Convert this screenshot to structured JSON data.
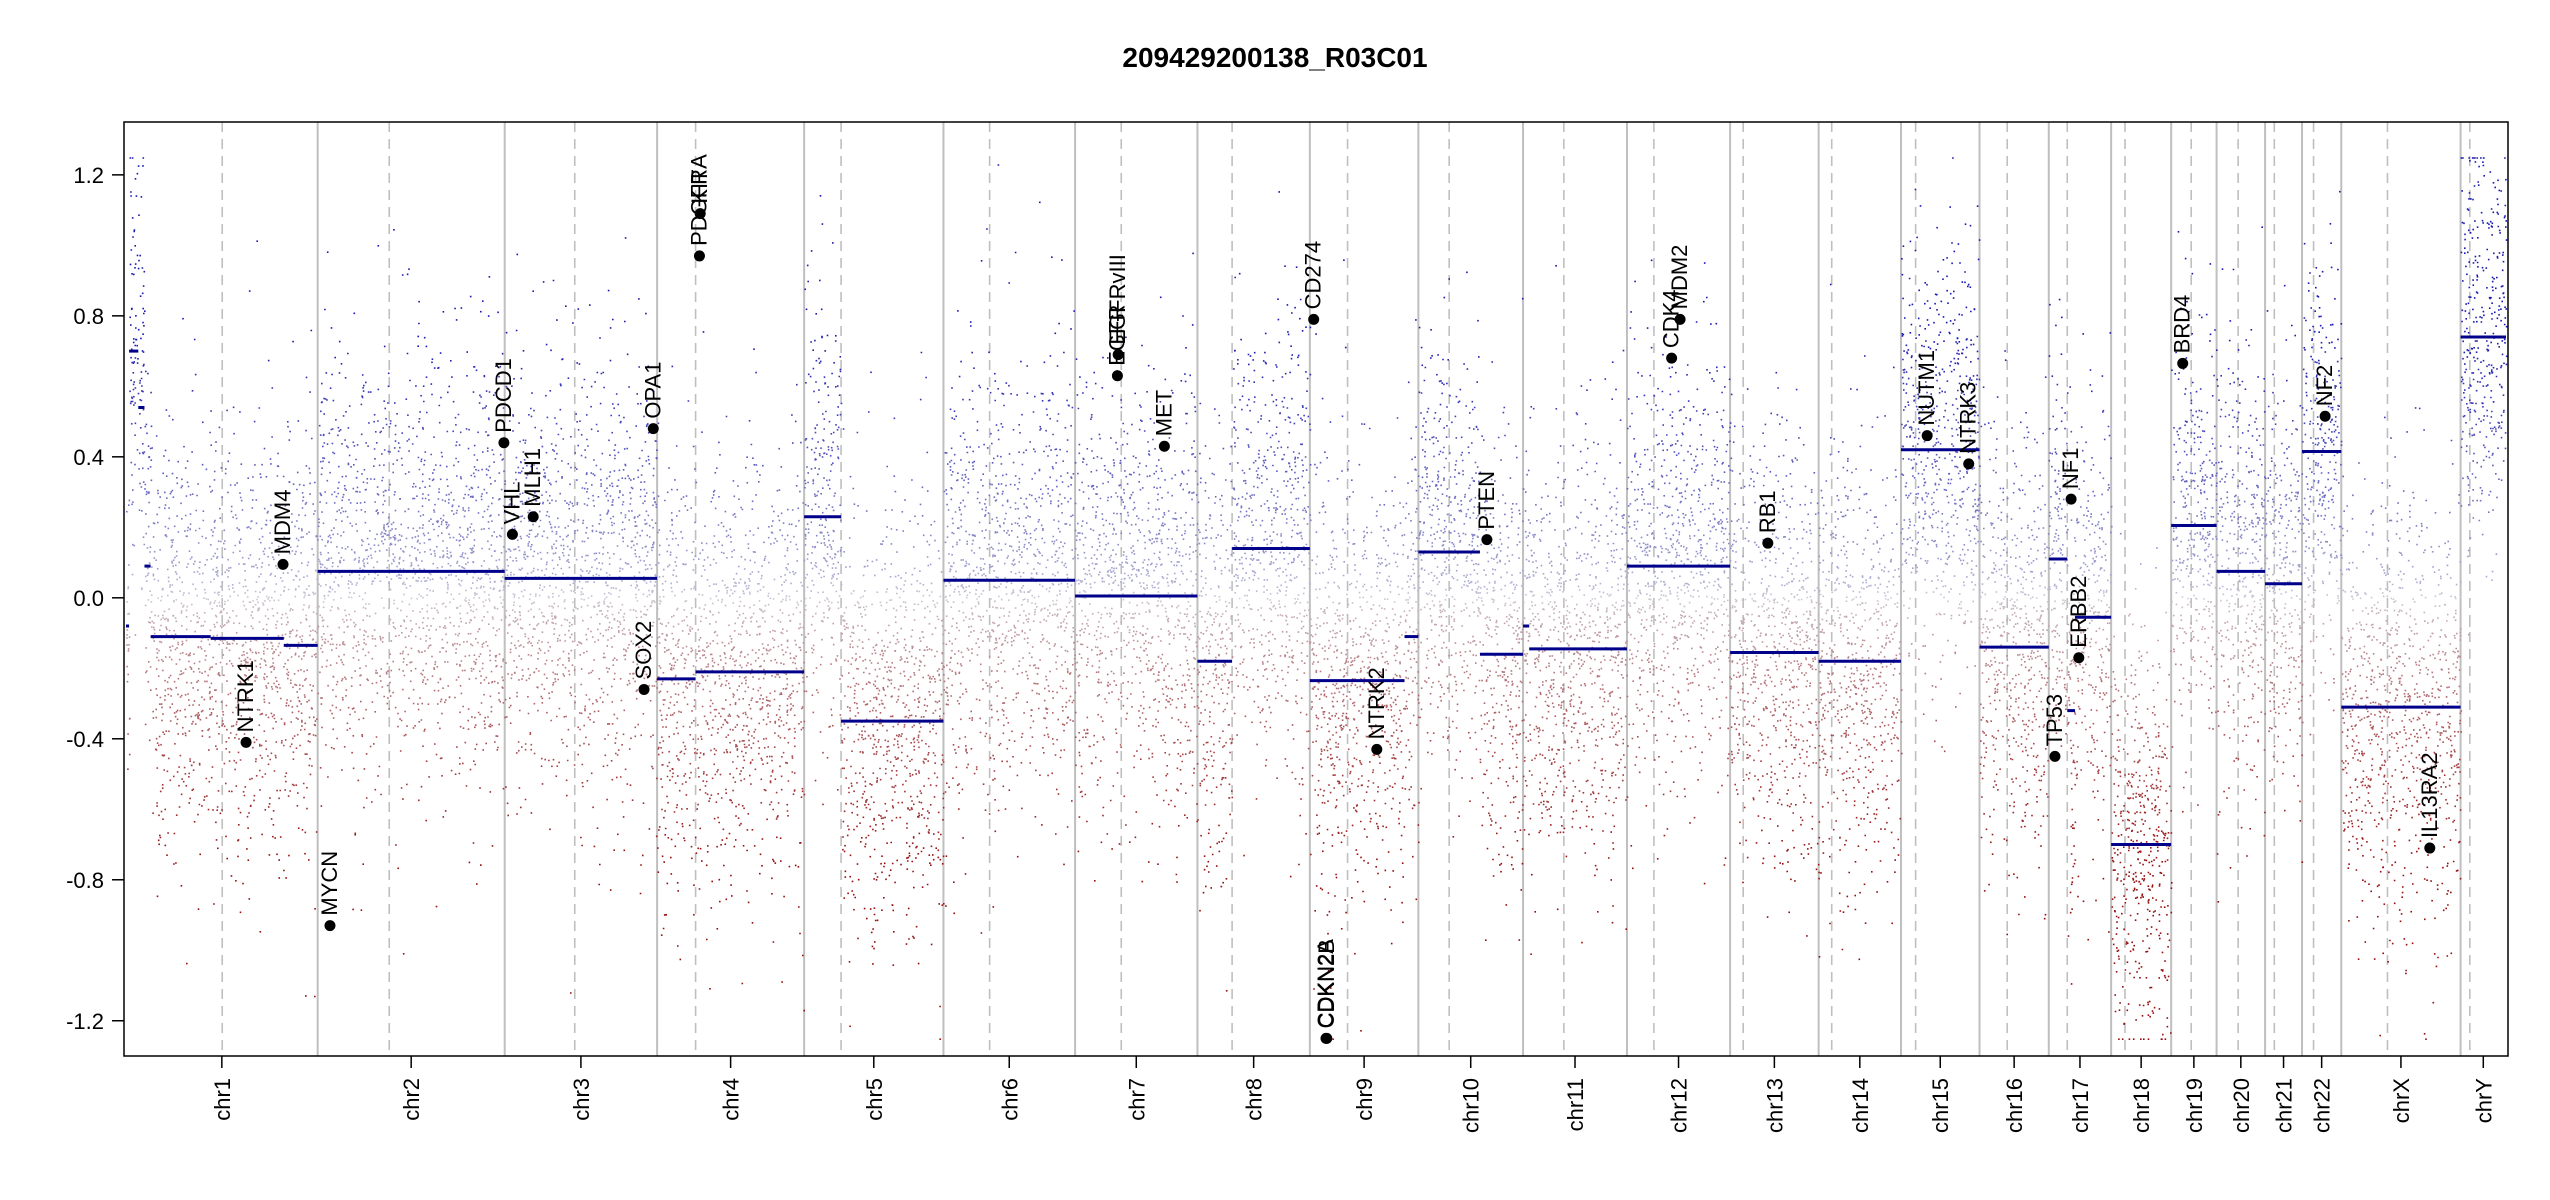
{
  "chart_data": {
    "type": "scatter",
    "title": "209429200138_R03C01",
    "xlabel": "",
    "ylabel": "",
    "ylim": [
      -1.3,
      1.35
    ],
    "yticks": [
      {
        "value": -1.2,
        "label": "-1.2"
      },
      {
        "value": -0.8,
        "label": "-0.8"
      },
      {
        "value": -0.4,
        "label": "-0.4"
      },
      {
        "value": 0.0,
        "label": "0.0"
      },
      {
        "value": 0.4,
        "label": "0.4"
      },
      {
        "value": 0.8,
        "label": "0.8"
      },
      {
        "value": 1.2,
        "label": "1.2"
      }
    ],
    "grid": false,
    "colors": {
      "gain": "#0a0a8c",
      "loss": "#8b0000",
      "neutral": "#c8c8c8",
      "segment": "#00008b",
      "boundary": "#bfbfbf",
      "gene": "#000000"
    },
    "chromosomes": [
      {
        "name": "chr1",
        "length": 249,
        "centromere": 125
      },
      {
        "name": "chr2",
        "length": 243,
        "centromere": 93
      },
      {
        "name": "chr3",
        "length": 198,
        "centromere": 91
      },
      {
        "name": "chr4",
        "length": 191,
        "centromere": 50
      },
      {
        "name": "chr5",
        "length": 181,
        "centromere": 48
      },
      {
        "name": "chr6",
        "length": 171,
        "centromere": 60
      },
      {
        "name": "chr7",
        "length": 159,
        "centromere": 60
      },
      {
        "name": "chr8",
        "length": 146,
        "centromere": 45
      },
      {
        "name": "chr9",
        "length": 141,
        "centromere": 49
      },
      {
        "name": "chr10",
        "length": 136,
        "centromere": 40
      },
      {
        "name": "chr11",
        "length": 135,
        "centromere": 53
      },
      {
        "name": "chr12",
        "length": 134,
        "centromere": 35
      },
      {
        "name": "chr13",
        "length": 115,
        "centromere": 17
      },
      {
        "name": "chr14",
        "length": 107,
        "centromere": 17
      },
      {
        "name": "chr15",
        "length": 102,
        "centromere": 19
      },
      {
        "name": "chr16",
        "length": 90,
        "centromere": 36
      },
      {
        "name": "chr17",
        "length": 81,
        "centromere": 24
      },
      {
        "name": "chr18",
        "length": 78,
        "centromere": 18
      },
      {
        "name": "chr19",
        "length": 59,
        "centromere": 26
      },
      {
        "name": "chr20",
        "length": 63,
        "centromere": 28
      },
      {
        "name": "chr21",
        "length": 48,
        "centromere": 12
      },
      {
        "name": "chr22",
        "length": 51,
        "centromere": 15
      },
      {
        "name": "chrX",
        "length": 155,
        "centromere": 60
      },
      {
        "name": "chrY",
        "length": 59,
        "centromere": 12
      }
    ],
    "segments": [
      {
        "chr": "chr1",
        "start": 0,
        "end": 4,
        "value": -0.08
      },
      {
        "chr": "chr1",
        "start": 4,
        "end": 16,
        "value": 0.7
      },
      {
        "chr": "chr1",
        "start": 16,
        "end": 24,
        "value": 0.54
      },
      {
        "chr": "chr1",
        "start": 24,
        "end": 32,
        "value": 0.09
      },
      {
        "chr": "chr1",
        "start": 32,
        "end": 110,
        "value": -0.11
      },
      {
        "chr": "chr1",
        "start": 110,
        "end": 205,
        "value": -0.115
      },
      {
        "chr": "chr1",
        "start": 205,
        "end": 249,
        "value": -0.135
      },
      {
        "chr": "chr2",
        "start": 0,
        "end": 243,
        "value": 0.075
      },
      {
        "chr": "chr3",
        "start": 0,
        "end": 198,
        "value": 0.055
      },
      {
        "chr": "chr4",
        "start": 0,
        "end": 50,
        "value": -0.23
      },
      {
        "chr": "chr4",
        "start": 50,
        "end": 191,
        "value": -0.21
      },
      {
        "chr": "chr5",
        "start": 0,
        "end": 48,
        "value": 0.23
      },
      {
        "chr": "chr5",
        "start": 48,
        "end": 181,
        "value": -0.35
      },
      {
        "chr": "chr6",
        "start": 0,
        "end": 171,
        "value": 0.05
      },
      {
        "chr": "chr7",
        "start": 0,
        "end": 159,
        "value": 0.005
      },
      {
        "chr": "chr8",
        "start": 0,
        "end": 45,
        "value": -0.18
      },
      {
        "chr": "chr8",
        "start": 45,
        "end": 146,
        "value": 0.14
      },
      {
        "chr": "chr9",
        "start": 0,
        "end": 123,
        "value": -0.235
      },
      {
        "chr": "chr9",
        "start": 123,
        "end": 141,
        "value": -0.11
      },
      {
        "chr": "chr10",
        "start": 0,
        "end": 80,
        "value": 0.13
      },
      {
        "chr": "chr10",
        "start": 80,
        "end": 136,
        "value": -0.16
      },
      {
        "chr": "chr11",
        "start": 0,
        "end": 8,
        "value": -0.08
      },
      {
        "chr": "chr11",
        "start": 8,
        "end": 135,
        "value": -0.145
      },
      {
        "chr": "chr12",
        "start": 0,
        "end": 134,
        "value": 0.09
      },
      {
        "chr": "chr13",
        "start": 0,
        "end": 115,
        "value": -0.155
      },
      {
        "chr": "chr14",
        "start": 0,
        "end": 107,
        "value": -0.18
      },
      {
        "chr": "chr15",
        "start": 0,
        "end": 102,
        "value": 0.42
      },
      {
        "chr": "chr16",
        "start": 0,
        "end": 90,
        "value": -0.14
      },
      {
        "chr": "chr17",
        "start": 0,
        "end": 24,
        "value": 0.11
      },
      {
        "chr": "chr17",
        "start": 24,
        "end": 34,
        "value": -0.32
      },
      {
        "chr": "chr17",
        "start": 34,
        "end": 81,
        "value": -0.055
      },
      {
        "chr": "chr18",
        "start": 0,
        "end": 78,
        "value": -0.7
      },
      {
        "chr": "chr19",
        "start": 0,
        "end": 59,
        "value": 0.205
      },
      {
        "chr": "chr20",
        "start": 0,
        "end": 63,
        "value": 0.075
      },
      {
        "chr": "chr21",
        "start": 0,
        "end": 48,
        "value": 0.04
      },
      {
        "chr": "chr22",
        "start": 0,
        "end": 51,
        "value": 0.415
      },
      {
        "chr": "chrX",
        "start": 0,
        "end": 155,
        "value": -0.31
      },
      {
        "chr": "chrY",
        "start": 0,
        "end": 59,
        "value": 0.74
      }
    ],
    "genes": [
      {
        "name": "NTRK1",
        "chr": "chr1",
        "pos": 156,
        "value": -0.41
      },
      {
        "name": "MDM4",
        "chr": "chr1",
        "pos": 204,
        "value": 0.095
      },
      {
        "name": "MYCN",
        "chr": "chr2",
        "pos": 16,
        "value": -0.93
      },
      {
        "name": "PDCD1",
        "chr": "chr2",
        "pos": 242,
        "value": 0.44
      },
      {
        "name": "VHL",
        "chr": "chr3",
        "pos": 10,
        "value": 0.18
      },
      {
        "name": "MLH1",
        "chr": "chr3",
        "pos": 37,
        "value": 0.23
      },
      {
        "name": "SOX2",
        "chr": "chr3",
        "pos": 181,
        "value": -0.26
      },
      {
        "name": "OPA1",
        "chr": "chr3",
        "pos": 193,
        "value": 0.48
      },
      {
        "name": "PDGFRA",
        "chr": "chr4",
        "pos": 55,
        "value": 0.97
      },
      {
        "name": "KIT",
        "chr": "chr4",
        "pos": 56,
        "value": 1.09
      },
      {
        "name": "EGFR",
        "chr": "chr7",
        "pos": 55,
        "value": 0.63
      },
      {
        "name": "EGFRvIII",
        "chr": "chr7",
        "pos": 56,
        "value": 0.69
      },
      {
        "name": "MET",
        "chr": "chr7",
        "pos": 116,
        "value": 0.43
      },
      {
        "name": "CD274",
        "chr": "chr9",
        "pos": 5,
        "value": 0.79
      },
      {
        "name": "CDKN2A",
        "chr": "chr9",
        "pos": 21,
        "value": -1.25
      },
      {
        "name": "CDKN2B",
        "chr": "chr9",
        "pos": 22,
        "value": -1.25
      },
      {
        "name": "NTRK2",
        "chr": "chr9",
        "pos": 87,
        "value": -0.43
      },
      {
        "name": "PTEN",
        "chr": "chr10",
        "pos": 89,
        "value": 0.165
      },
      {
        "name": "CDK4",
        "chr": "chr12",
        "pos": 58,
        "value": 0.68
      },
      {
        "name": "MDM2",
        "chr": "chr12",
        "pos": 69,
        "value": 0.79
      },
      {
        "name": "RB1",
        "chr": "chr13",
        "pos": 49,
        "value": 0.155
      },
      {
        "name": "NUTM1",
        "chr": "chr15",
        "pos": 34,
        "value": 0.46
      },
      {
        "name": "NTRK3",
        "chr": "chr15",
        "pos": 88,
        "value": 0.38
      },
      {
        "name": "TP53",
        "chr": "chr17",
        "pos": 8,
        "value": -0.45
      },
      {
        "name": "NF1",
        "chr": "chr17",
        "pos": 29,
        "value": 0.28
      },
      {
        "name": "ERBB2",
        "chr": "chr17",
        "pos": 39,
        "value": -0.17
      },
      {
        "name": "BRD4",
        "chr": "chr19",
        "pos": 15,
        "value": 0.665
      },
      {
        "name": "NF2",
        "chr": "chr22",
        "pos": 30,
        "value": 0.515
      },
      {
        "name": "IL13RA2",
        "chr": "chrX",
        "pos": 115,
        "value": -0.71
      }
    ]
  }
}
